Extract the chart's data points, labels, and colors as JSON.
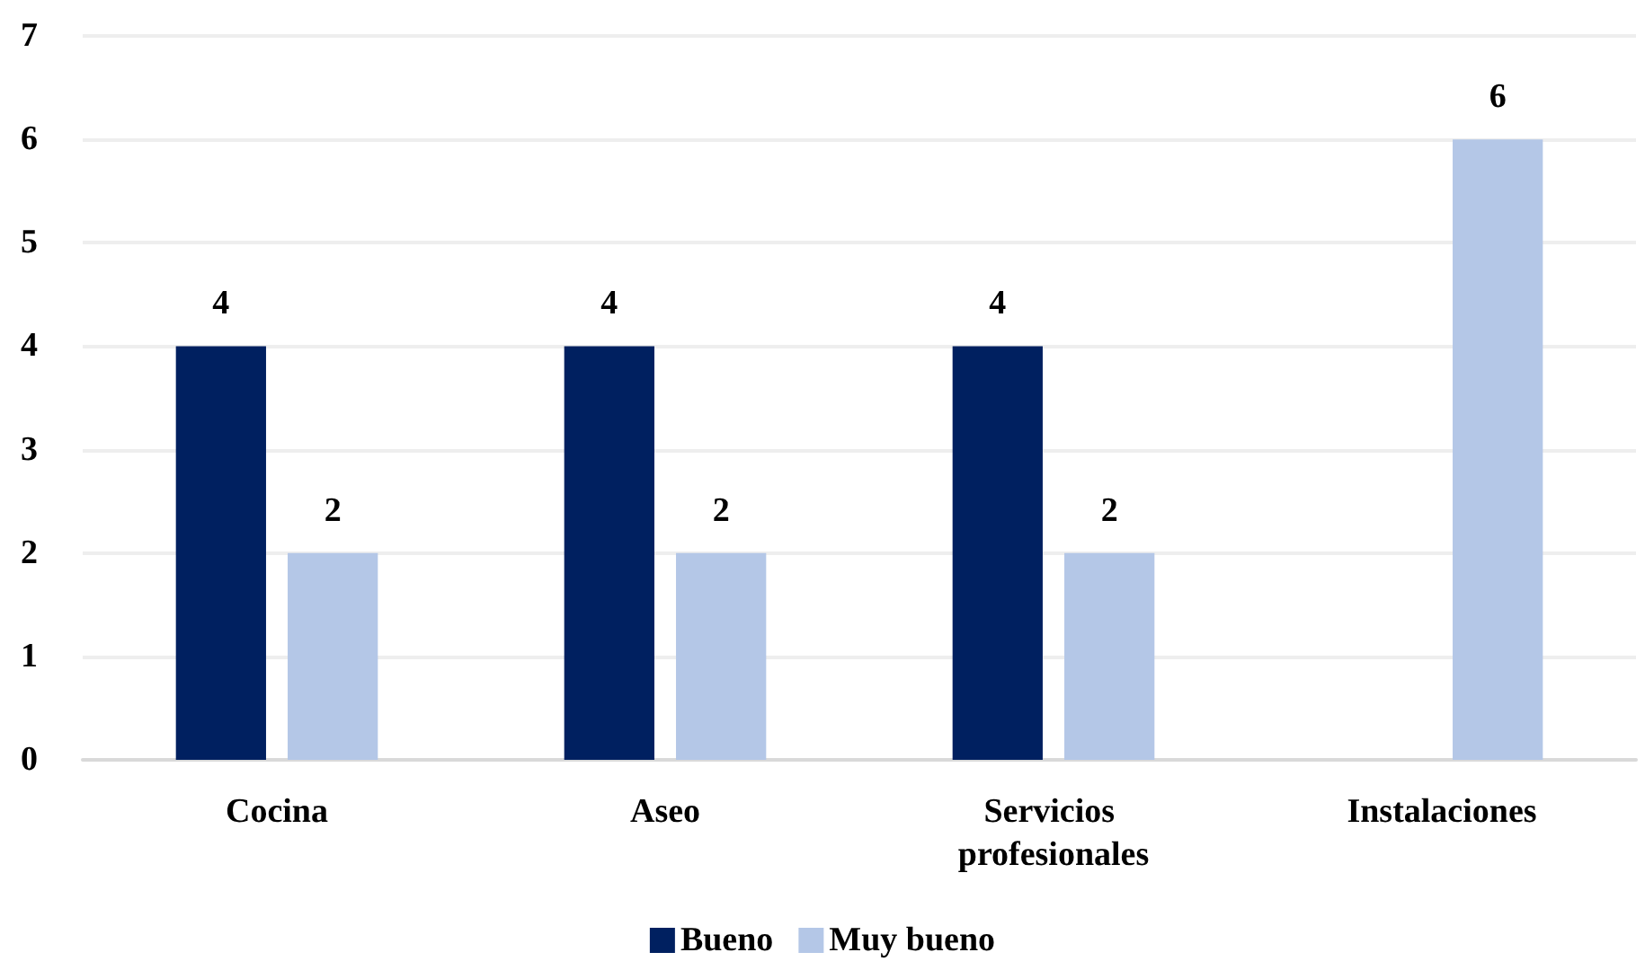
{
  "chart_data": {
    "type": "bar",
    "categories": [
      "Cocina",
      "Aseo",
      "Servicios profesionales",
      "Instalaciones"
    ],
    "series": [
      {
        "name": "Bueno",
        "color": "#002060",
        "values": [
          4,
          4,
          4,
          null
        ]
      },
      {
        "name": "Muy bueno",
        "color": "#b4c7e7",
        "values": [
          2,
          2,
          2,
          6
        ]
      }
    ],
    "ylim": [
      0,
      7
    ],
    "yticks": [
      0,
      1,
      2,
      3,
      4,
      5,
      6,
      7
    ],
    "grid": "y",
    "legend": "bottom",
    "data_labels": true
  }
}
